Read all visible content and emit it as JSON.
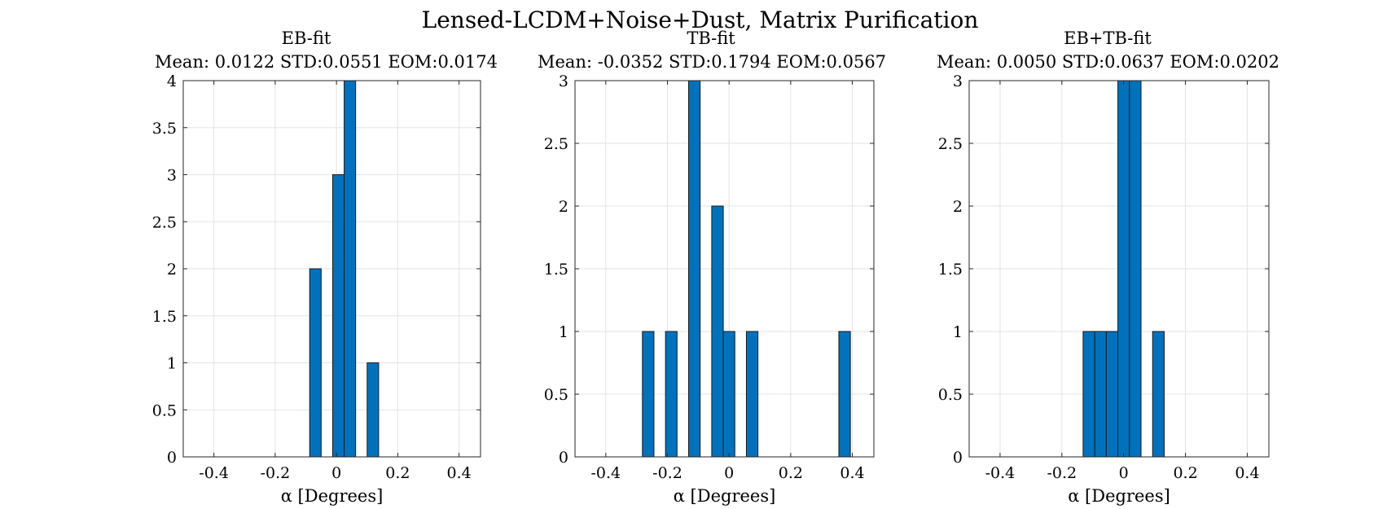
{
  "figure": {
    "title": "Lensed-LCDM+Noise+Dust, Matrix Purification"
  },
  "chart_data": [
    {
      "type": "bar",
      "title": "EB-fit",
      "subtitle": "Mean: 0.0122 STD:0.0551 EOM:0.0174",
      "xlabel": "α [Degrees]",
      "ylabel": "",
      "xlim": [
        -0.5,
        0.47
      ],
      "ylim": [
        0,
        4
      ],
      "xticks": [
        -0.4,
        -0.2,
        0,
        0.2,
        0.4
      ],
      "xtick_labels": [
        "-0.4",
        "-0.2",
        "0",
        "0.2",
        "0.4"
      ],
      "yticks": [
        0,
        0.5,
        1,
        1.5,
        2,
        2.5,
        3,
        3.5,
        4
      ],
      "ytick_labels": [
        "0",
        "0.5",
        "1",
        "1.5",
        "2",
        "2.5",
        "3",
        "3.5",
        "4"
      ],
      "grid": true,
      "bin_width": 0.0375,
      "bins": [
        {
          "x": -0.0687,
          "count": 2
        },
        {
          "x": 0.0063,
          "count": 3
        },
        {
          "x": 0.0438,
          "count": 4
        },
        {
          "x": 0.1188,
          "count": 1
        }
      ]
    },
    {
      "type": "bar",
      "title": "TB-fit",
      "subtitle": "Mean: -0.0352 STD:0.1794 EOM:0.0567",
      "xlabel": "α [Degrees]",
      "ylabel": "",
      "xlim": [
        -0.5,
        0.47
      ],
      "ylim": [
        0,
        3
      ],
      "xticks": [
        -0.4,
        -0.2,
        0,
        0.2,
        0.4
      ],
      "xtick_labels": [
        "-0.4",
        "-0.2",
        "0",
        "0.2",
        "0.4"
      ],
      "yticks": [
        0,
        0.5,
        1,
        1.5,
        2,
        2.5,
        3
      ],
      "ytick_labels": [
        "0",
        "0.5",
        "1",
        "1.5",
        "2",
        "2.5",
        "3"
      ],
      "grid": true,
      "bin_width": 0.0375,
      "bins": [
        {
          "x": -0.2625,
          "count": 1
        },
        {
          "x": -0.1875,
          "count": 1
        },
        {
          "x": -0.1125,
          "count": 3
        },
        {
          "x": -0.0375,
          "count": 2
        },
        {
          "x": 0.0,
          "count": 1
        },
        {
          "x": 0.075,
          "count": 1
        },
        {
          "x": 0.375,
          "count": 1
        }
      ]
    },
    {
      "type": "bar",
      "title": "EB+TB-fit",
      "subtitle": "Mean: 0.0050 STD:0.0637 EOM:0.0202",
      "xlabel": "α [Degrees]",
      "ylabel": "",
      "xlim": [
        -0.5,
        0.47
      ],
      "ylim": [
        0,
        3
      ],
      "xticks": [
        -0.4,
        -0.2,
        0,
        0.2,
        0.4
      ],
      "xtick_labels": [
        "-0.4",
        "-0.2",
        "0",
        "0.2",
        "0.4"
      ],
      "yticks": [
        0,
        0.5,
        1,
        1.5,
        2,
        2.5,
        3
      ],
      "ytick_labels": [
        "0",
        "0.5",
        "1",
        "1.5",
        "2",
        "2.5",
        "3"
      ],
      "grid": true,
      "bin_width": 0.0375,
      "bins": [
        {
          "x": -0.1125,
          "count": 1
        },
        {
          "x": -0.075,
          "count": 1
        },
        {
          "x": -0.0375,
          "count": 1
        },
        {
          "x": 0.0,
          "count": 3
        },
        {
          "x": 0.0375,
          "count": 3
        },
        {
          "x": 0.1125,
          "count": 1
        }
      ]
    }
  ],
  "colors": {
    "bar_fill": "#0072BD",
    "bar_edge": "#1a1a1a",
    "grid": "#e3e3e3",
    "axis": "#262626"
  }
}
